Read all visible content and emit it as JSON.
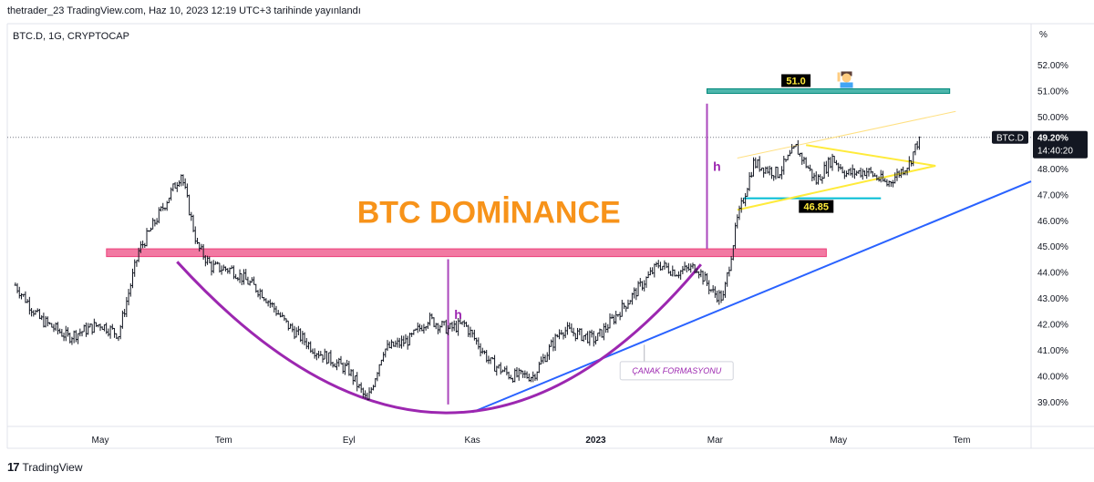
{
  "header": {
    "published": "thetrader_23 TradingView.com, Haz 10, 2023 12:19 UTC+3 tarihinde yayınlandı"
  },
  "symbol_line": "BTC.D, 1G, CRYPTOCAP",
  "percent_symbol": "%",
  "footer": {
    "brand": "TradingView",
    "logo_glyph": "17"
  },
  "annotations": {
    "title": "BTC DOMİNANCE",
    "h_left": "h",
    "h_right": "h",
    "resistance_label": "51.0",
    "support_label": "46.85",
    "cup_label": "ÇANAK FORMASYONU",
    "price_tag_symbol": "BTC.D",
    "price_tag_value": "49.20%",
    "price_tag_countdown": "14:40:20",
    "person_icon": "person-raising-hand-icon"
  },
  "colors": {
    "title": "#f7931a",
    "cup": "#9c27b0",
    "trendline": "#2962ff",
    "zone": "#f06292",
    "resistance": "#26a69a",
    "triangle": "#ffeb3b",
    "support": "#00bcd4",
    "candles": "#131722",
    "tag_bg": "#131722"
  },
  "chart_data": {
    "type": "line",
    "title": "BTC.D, 1G, CRYPTOCAP",
    "xlabel": "",
    "ylabel": "%",
    "ylim": [
      38.0,
      53.0
    ],
    "yticks": [
      "52.00%",
      "51.00%",
      "50.00%",
      "49.00%",
      "48.00%",
      "47.00%",
      "46.00%",
      "45.00%",
      "44.00%",
      "43.00%",
      "42.00%",
      "41.00%",
      "40.00%",
      "39.00%"
    ],
    "ytick_values": [
      52,
      51,
      50,
      49,
      48,
      47,
      46,
      45,
      44,
      43,
      42,
      41,
      40,
      39
    ],
    "xticks": [
      "May",
      "Tem",
      "Eyl",
      "Kas",
      "2023",
      "Mar",
      "May",
      "Tem"
    ],
    "xtick_dates": [
      "2022-05-01",
      "2022-07-01",
      "2022-09-01",
      "2022-11-01",
      "2023-01-01",
      "2023-03-01",
      "2023-05-01",
      "2023-07-01"
    ],
    "x_range": [
      "2022-03-20",
      "2023-07-20"
    ],
    "series": [
      {
        "x": [
          "2022-03-20",
          "2022-04-01",
          "2022-04-15",
          "2022-05-01",
          "2022-05-10",
          "2022-05-20",
          "2022-06-01",
          "2022-06-10",
          "2022-06-18",
          "2022-06-25",
          "2022-07-05",
          "2022-07-20",
          "2022-08-01",
          "2022-08-15",
          "2022-09-01",
          "2022-09-10",
          "2022-09-18",
          "2022-10-01",
          "2022-10-10",
          "2022-10-20",
          "2022-10-28",
          "2022-11-05",
          "2022-11-10",
          "2022-11-20",
          "2022-12-01",
          "2022-12-15",
          "2023-01-01",
          "2023-01-15",
          "2023-02-01",
          "2023-02-10",
          "2023-02-20",
          "2023-02-28",
          "2023-03-05",
          "2023-03-12",
          "2023-03-20",
          "2023-04-01",
          "2023-04-10",
          "2023-04-20",
          "2023-04-28",
          "2023-05-05",
          "2023-05-15",
          "2023-05-25",
          "2023-06-05",
          "2023-06-10"
        ],
        "y": [
          43.5,
          42.2,
          41.5,
          42.0,
          41.6,
          44.8,
          46.5,
          47.8,
          45.0,
          44.2,
          44.1,
          43.2,
          42.0,
          41.0,
          40.2,
          39.0,
          41.0,
          41.4,
          42.2,
          41.8,
          42.0,
          41.1,
          40.5,
          40.0,
          40.0,
          41.8,
          41.4,
          42.7,
          44.3,
          44.0,
          44.2,
          43.2,
          43.0,
          46.0,
          48.2,
          47.8,
          48.8,
          47.5,
          48.4,
          47.8,
          47.9,
          47.4,
          48.2,
          49.2
        ]
      }
    ],
    "levels": {
      "resistance": 51.0,
      "support": 46.85,
      "last": 49.2
    }
  }
}
